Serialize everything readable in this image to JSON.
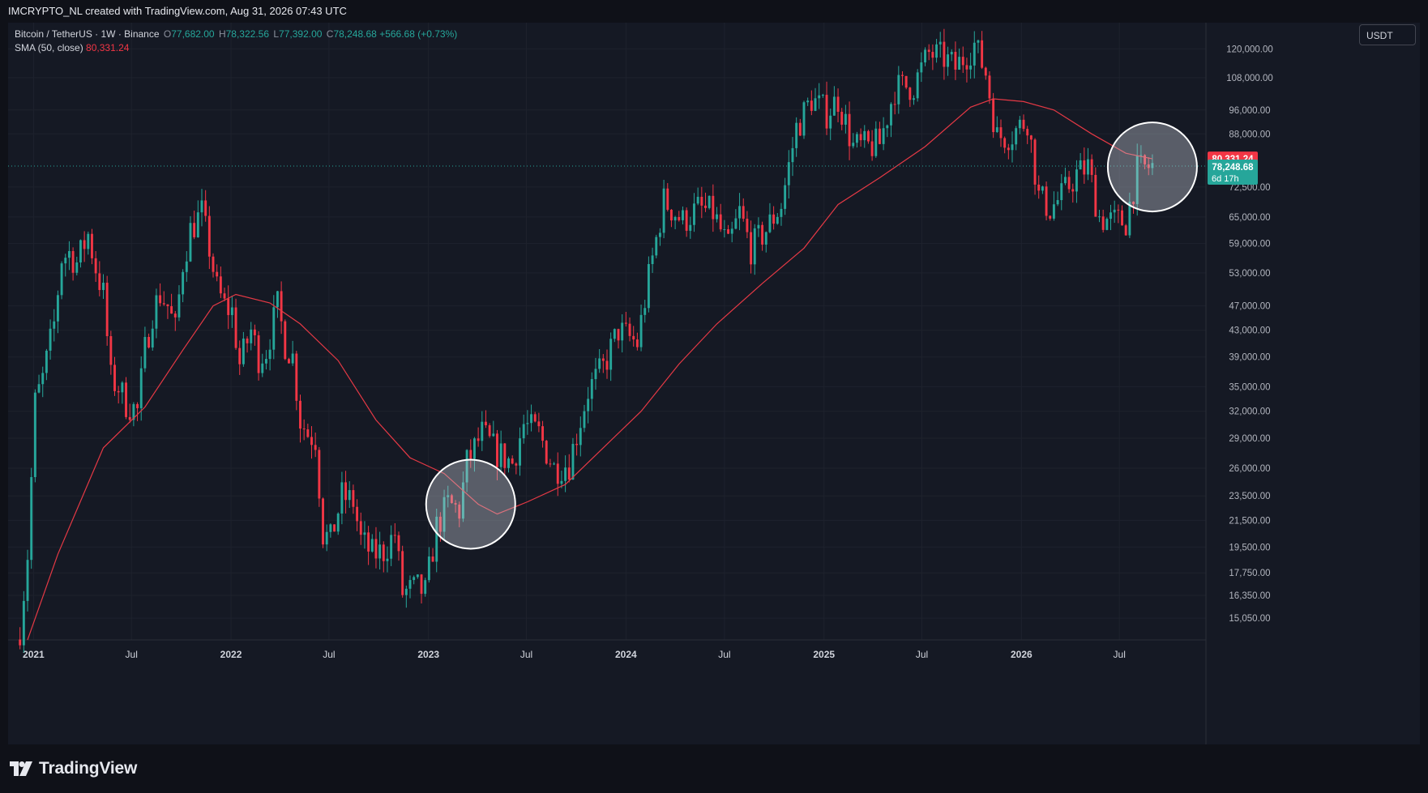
{
  "header": {
    "caption": "IMCRYPTO_NL created with TradingView.com, Aug 31, 2026 07:43 UTC"
  },
  "legend": {
    "symbol": "Bitcoin / TetherUS · 1W · Binance",
    "o_label": "O",
    "o_value": "77,682.00",
    "h_label": "H",
    "h_value": "78,322.56",
    "l_label": "L",
    "l_value": "77,392.00",
    "c_label": "C",
    "c_value": "78,248.68",
    "change": "+566.68 (+0.73%)",
    "sma_label": "SMA (50, close)",
    "sma_value": "80,331.24"
  },
  "currency_button": "USDT",
  "logo": {
    "text": "TradingView",
    "icon": "tradingview-logo-icon"
  },
  "colors": {
    "up": "#26a69a",
    "down": "#f23645",
    "sma": "#e53945",
    "background": "#151924",
    "grid": "#1e222d",
    "highlight_circle": "#ffffff"
  },
  "chart_data": {
    "type": "candlestick",
    "title": "Bitcoin / TetherUS · 1W · Binance",
    "scale": "log",
    "ylim": [
      13900,
      132000
    ],
    "xlim": [
      "2020-11-15",
      "2026-12-08"
    ],
    "grid": true,
    "y_ticks": [
      "120,000.00",
      "108,000.00",
      "96,000.00",
      "88,000.00",
      "72,500.00",
      "65,000.00",
      "59,000.00",
      "53,000.00",
      "47,000.00",
      "43,000.00",
      "39,000.00",
      "35,000.00",
      "32,000.00",
      "29,000.00",
      "26,000.00",
      "23,500.00",
      "21,500.00",
      "19,500.00",
      "17,750.00",
      "16,350.00",
      "15,050.00"
    ],
    "x_ticks": [
      {
        "label": "2021",
        "date": "2021-01-01"
      },
      {
        "label": "Jul",
        "date": "2021-07-01"
      },
      {
        "label": "2022",
        "date": "2022-01-01"
      },
      {
        "label": "Jul",
        "date": "2022-07-01"
      },
      {
        "label": "2023",
        "date": "2023-01-01"
      },
      {
        "label": "Jul",
        "date": "2023-07-01"
      },
      {
        "label": "2024",
        "date": "2024-01-01"
      },
      {
        "label": "Jul",
        "date": "2024-07-01"
      },
      {
        "label": "2025",
        "date": "2025-01-01"
      },
      {
        "label": "Jul",
        "date": "2025-07-01"
      },
      {
        "label": "2026",
        "date": "2026-01-01"
      },
      {
        "label": "Jul",
        "date": "2026-07-01"
      }
    ],
    "price_path": [
      [
        "2020-12-07",
        14500
      ],
      [
        "2020-12-21",
        19000
      ],
      [
        "2021-01-04",
        33000
      ],
      [
        "2021-01-18",
        36000
      ],
      [
        "2021-02-08",
        44000
      ],
      [
        "2021-02-22",
        56000
      ],
      [
        "2021-03-08",
        57000
      ],
      [
        "2021-03-22",
        55000
      ],
      [
        "2021-04-12",
        61000
      ],
      [
        "2021-04-26",
        54000
      ],
      [
        "2021-05-10",
        49000
      ],
      [
        "2021-05-24",
        36000
      ],
      [
        "2021-06-07",
        35000
      ],
      [
        "2021-06-21",
        33000
      ],
      [
        "2021-07-12",
        32000
      ],
      [
        "2021-07-26",
        40000
      ],
      [
        "2021-08-09",
        46000
      ],
      [
        "2021-08-23",
        49000
      ],
      [
        "2021-09-06",
        47000
      ],
      [
        "2021-09-20",
        43000
      ],
      [
        "2021-10-04",
        55000
      ],
      [
        "2021-10-18",
        62000
      ],
      [
        "2021-11-08",
        66000
      ],
      [
        "2021-11-22",
        58000
      ],
      [
        "2021-12-06",
        50000
      ],
      [
        "2021-12-20",
        47000
      ],
      [
        "2022-01-03",
        46000
      ],
      [
        "2022-01-17",
        38000
      ],
      [
        "2022-02-07",
        43000
      ],
      [
        "2022-02-21",
        39000
      ],
      [
        "2022-03-07",
        40000
      ],
      [
        "2022-03-28",
        47000
      ],
      [
        "2022-04-11",
        41000
      ],
      [
        "2022-04-25",
        39000
      ],
      [
        "2022-05-09",
        31000
      ],
      [
        "2022-05-23",
        29500
      ],
      [
        "2022-06-06",
        29000
      ],
      [
        "2022-06-20",
        20500
      ],
      [
        "2022-07-04",
        20000
      ],
      [
        "2022-07-25",
        23500
      ],
      [
        "2022-08-15",
        23000
      ],
      [
        "2022-08-29",
        20000
      ],
      [
        "2022-09-19",
        19000
      ],
      [
        "2022-10-10",
        19200
      ],
      [
        "2022-10-31",
        20500
      ],
      [
        "2022-11-14",
        16500
      ],
      [
        "2022-12-12",
        16800
      ],
      [
        "2022-12-26",
        16500
      ],
      [
        "2023-01-16",
        21000
      ],
      [
        "2023-02-06",
        22800
      ],
      [
        "2023-02-27",
        22300
      ],
      [
        "2023-03-13",
        26500
      ],
      [
        "2023-04-10",
        29500
      ],
      [
        "2023-05-08",
        27500
      ],
      [
        "2023-06-05",
        26500
      ],
      [
        "2023-06-26",
        30500
      ],
      [
        "2023-07-24",
        29500
      ],
      [
        "2023-08-21",
        26000
      ],
      [
        "2023-09-18",
        26500
      ],
      [
        "2023-10-23",
        34500
      ],
      [
        "2023-11-20",
        37500
      ],
      [
        "2023-12-18",
        43000
      ],
      [
        "2024-01-22",
        41000
      ],
      [
        "2024-02-12",
        52000
      ],
      [
        "2024-03-11",
        69000
      ],
      [
        "2024-04-15",
        64000
      ],
      [
        "2024-05-13",
        67000
      ],
      [
        "2024-06-10",
        66000
      ],
      [
        "2024-07-08",
        58000
      ],
      [
        "2024-07-29",
        66000
      ],
      [
        "2024-08-19",
        58000
      ],
      [
        "2024-09-16",
        62000
      ],
      [
        "2024-10-14",
        68000
      ],
      [
        "2024-11-11",
        90000
      ],
      [
        "2024-12-09",
        100000
      ],
      [
        "2025-01-06",
        95000
      ],
      [
        "2025-01-27",
        100000
      ],
      [
        "2025-02-24",
        84000
      ],
      [
        "2025-03-24",
        84000
      ],
      [
        "2025-04-14",
        85000
      ],
      [
        "2025-05-12",
        104000
      ],
      [
        "2025-06-16",
        105000
      ],
      [
        "2025-07-14",
        118000
      ],
      [
        "2025-08-11",
        116000
      ],
      [
        "2025-09-01",
        112000
      ],
      [
        "2025-10-06",
        122000
      ],
      [
        "2025-10-27",
        110000
      ],
      [
        "2025-11-17",
        87000
      ],
      [
        "2025-12-15",
        88000
      ],
      [
        "2026-01-12",
        93000
      ],
      [
        "2026-02-02",
        70000
      ],
      [
        "2026-02-23",
        67000
      ],
      [
        "2026-03-16",
        70000
      ],
      [
        "2026-04-13",
        76000
      ],
      [
        "2026-05-04",
        78000
      ],
      [
        "2026-05-25",
        65000
      ],
      [
        "2026-06-15",
        64000
      ],
      [
        "2026-07-13",
        64000
      ],
      [
        "2026-08-03",
        77000
      ],
      [
        "2026-08-31",
        78248.68
      ]
    ],
    "sma_path": [
      [
        "2020-12-21",
        13900
      ],
      [
        "2021-02-15",
        19000
      ],
      [
        "2021-05-10",
        28000
      ],
      [
        "2021-07-26",
        32500
      ],
      [
        "2021-10-04",
        40000
      ],
      [
        "2021-11-29",
        47000
      ],
      [
        "2022-01-10",
        49000
      ],
      [
        "2022-03-14",
        47500
      ],
      [
        "2022-05-09",
        44000
      ],
      [
        "2022-07-18",
        38500
      ],
      [
        "2022-09-26",
        31000
      ],
      [
        "2022-11-28",
        27000
      ],
      [
        "2023-01-30",
        25500
      ],
      [
        "2023-04-03",
        22800
      ],
      [
        "2023-05-08",
        22000
      ],
      [
        "2023-07-03",
        23000
      ],
      [
        "2023-09-11",
        24500
      ],
      [
        "2023-11-20",
        28000
      ],
      [
        "2024-01-29",
        32000
      ],
      [
        "2024-04-08",
        38000
      ],
      [
        "2024-06-17",
        44000
      ],
      [
        "2024-09-09",
        51000
      ],
      [
        "2024-11-25",
        58000
      ],
      [
        "2025-01-27",
        68000
      ],
      [
        "2025-04-14",
        75000
      ],
      [
        "2025-07-07",
        84000
      ],
      [
        "2025-09-29",
        97000
      ],
      [
        "2025-11-10",
        100000
      ],
      [
        "2026-01-05",
        99000
      ],
      [
        "2026-03-02",
        96000
      ],
      [
        "2026-05-11",
        88000
      ],
      [
        "2026-07-13",
        82000
      ],
      [
        "2026-08-31",
        80331.24
      ]
    ],
    "last_price_label": {
      "value": "78,248.68",
      "countdown": "6d 17h"
    },
    "sma_price_label": {
      "value": "80,331.24"
    },
    "highlight_circles": [
      {
        "date": "2023-03-20",
        "price": 22800
      },
      {
        "date": "2026-08-31",
        "price": 78000
      }
    ]
  }
}
